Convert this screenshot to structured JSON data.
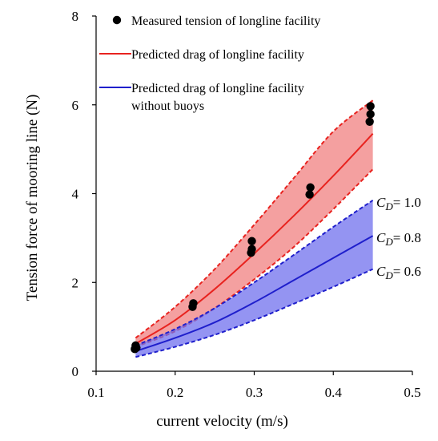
{
  "chart_data": {
    "type": "line",
    "xlabel": "current velocity (m/s)",
    "ylabel": "Tension force of mooring line  (N)",
    "xlim": [
      0.1,
      0.5
    ],
    "ylim": [
      0,
      8
    ],
    "xticks": [
      "0.1",
      "0.2",
      "0.3",
      "0.4",
      "0.5"
    ],
    "yticks": [
      "0",
      "2",
      "4",
      "6",
      "8"
    ],
    "grid": false,
    "legend_position": "top-left",
    "legend": [
      {
        "label": "Measured tension of longline facility",
        "kind": "marker",
        "color": "#000000"
      },
      {
        "label": "Predicted drag of longline facility",
        "kind": "line",
        "color": "#e8231f"
      },
      {
        "label_lines": [
          "Predicted drag of longline facility",
          "without buoys"
        ],
        "kind": "line",
        "color": "#1f1fcc"
      }
    ],
    "series": [
      {
        "name": "Measured tension of longline facility",
        "kind": "scatter",
        "color": "#000000",
        "points": [
          [
            0.149,
            0.5
          ],
          [
            0.15,
            0.58
          ],
          [
            0.151,
            0.53
          ],
          [
            0.222,
            1.45
          ],
          [
            0.223,
            1.53
          ],
          [
            0.296,
            2.67
          ],
          [
            0.297,
            2.75
          ],
          [
            0.297,
            2.93
          ],
          [
            0.37,
            3.98
          ],
          [
            0.371,
            4.14
          ],
          [
            0.446,
            5.62
          ],
          [
            0.447,
            5.79
          ],
          [
            0.447,
            5.97
          ]
        ]
      },
      {
        "name": "Predicted drag of longline facility",
        "kind": "band",
        "color": "#e8231f",
        "fill": "#f08080",
        "x": [
          0.15,
          0.2,
          0.25,
          0.3,
          0.35,
          0.4,
          0.45
        ],
        "mid": [
          0.62,
          1.15,
          1.85,
          2.65,
          3.5,
          4.4,
          5.35
        ],
        "upper": [
          0.75,
          1.45,
          2.3,
          3.3,
          4.35,
          5.4,
          6.1
        ],
        "lower": [
          0.55,
          0.9,
          1.42,
          2.07,
          2.8,
          3.65,
          4.55
        ]
      },
      {
        "name": "Predicted drag of longline facility without buoys",
        "kind": "band",
        "color": "#1f1fcc",
        "fill": "#7070ee",
        "x": [
          0.15,
          0.2,
          0.25,
          0.3,
          0.35,
          0.4,
          0.45
        ],
        "mid": [
          0.45,
          0.75,
          1.1,
          1.55,
          2.05,
          2.55,
          3.05
        ],
        "upper": [
          0.58,
          0.95,
          1.42,
          2.0,
          2.62,
          3.25,
          3.85
        ],
        "lower": [
          0.32,
          0.55,
          0.82,
          1.15,
          1.52,
          1.9,
          2.3
        ]
      }
    ],
    "annotations": [
      {
        "prefix": "C",
        "sub": "D",
        "suffix": "= 1.0",
        "anchor_y": 3.85
      },
      {
        "prefix": "C",
        "sub": "D",
        "suffix": "= 0.8",
        "anchor_y": 3.05
      },
      {
        "prefix": "C",
        "sub": "D",
        "suffix": "= 0.6",
        "anchor_y": 2.3
      }
    ]
  }
}
